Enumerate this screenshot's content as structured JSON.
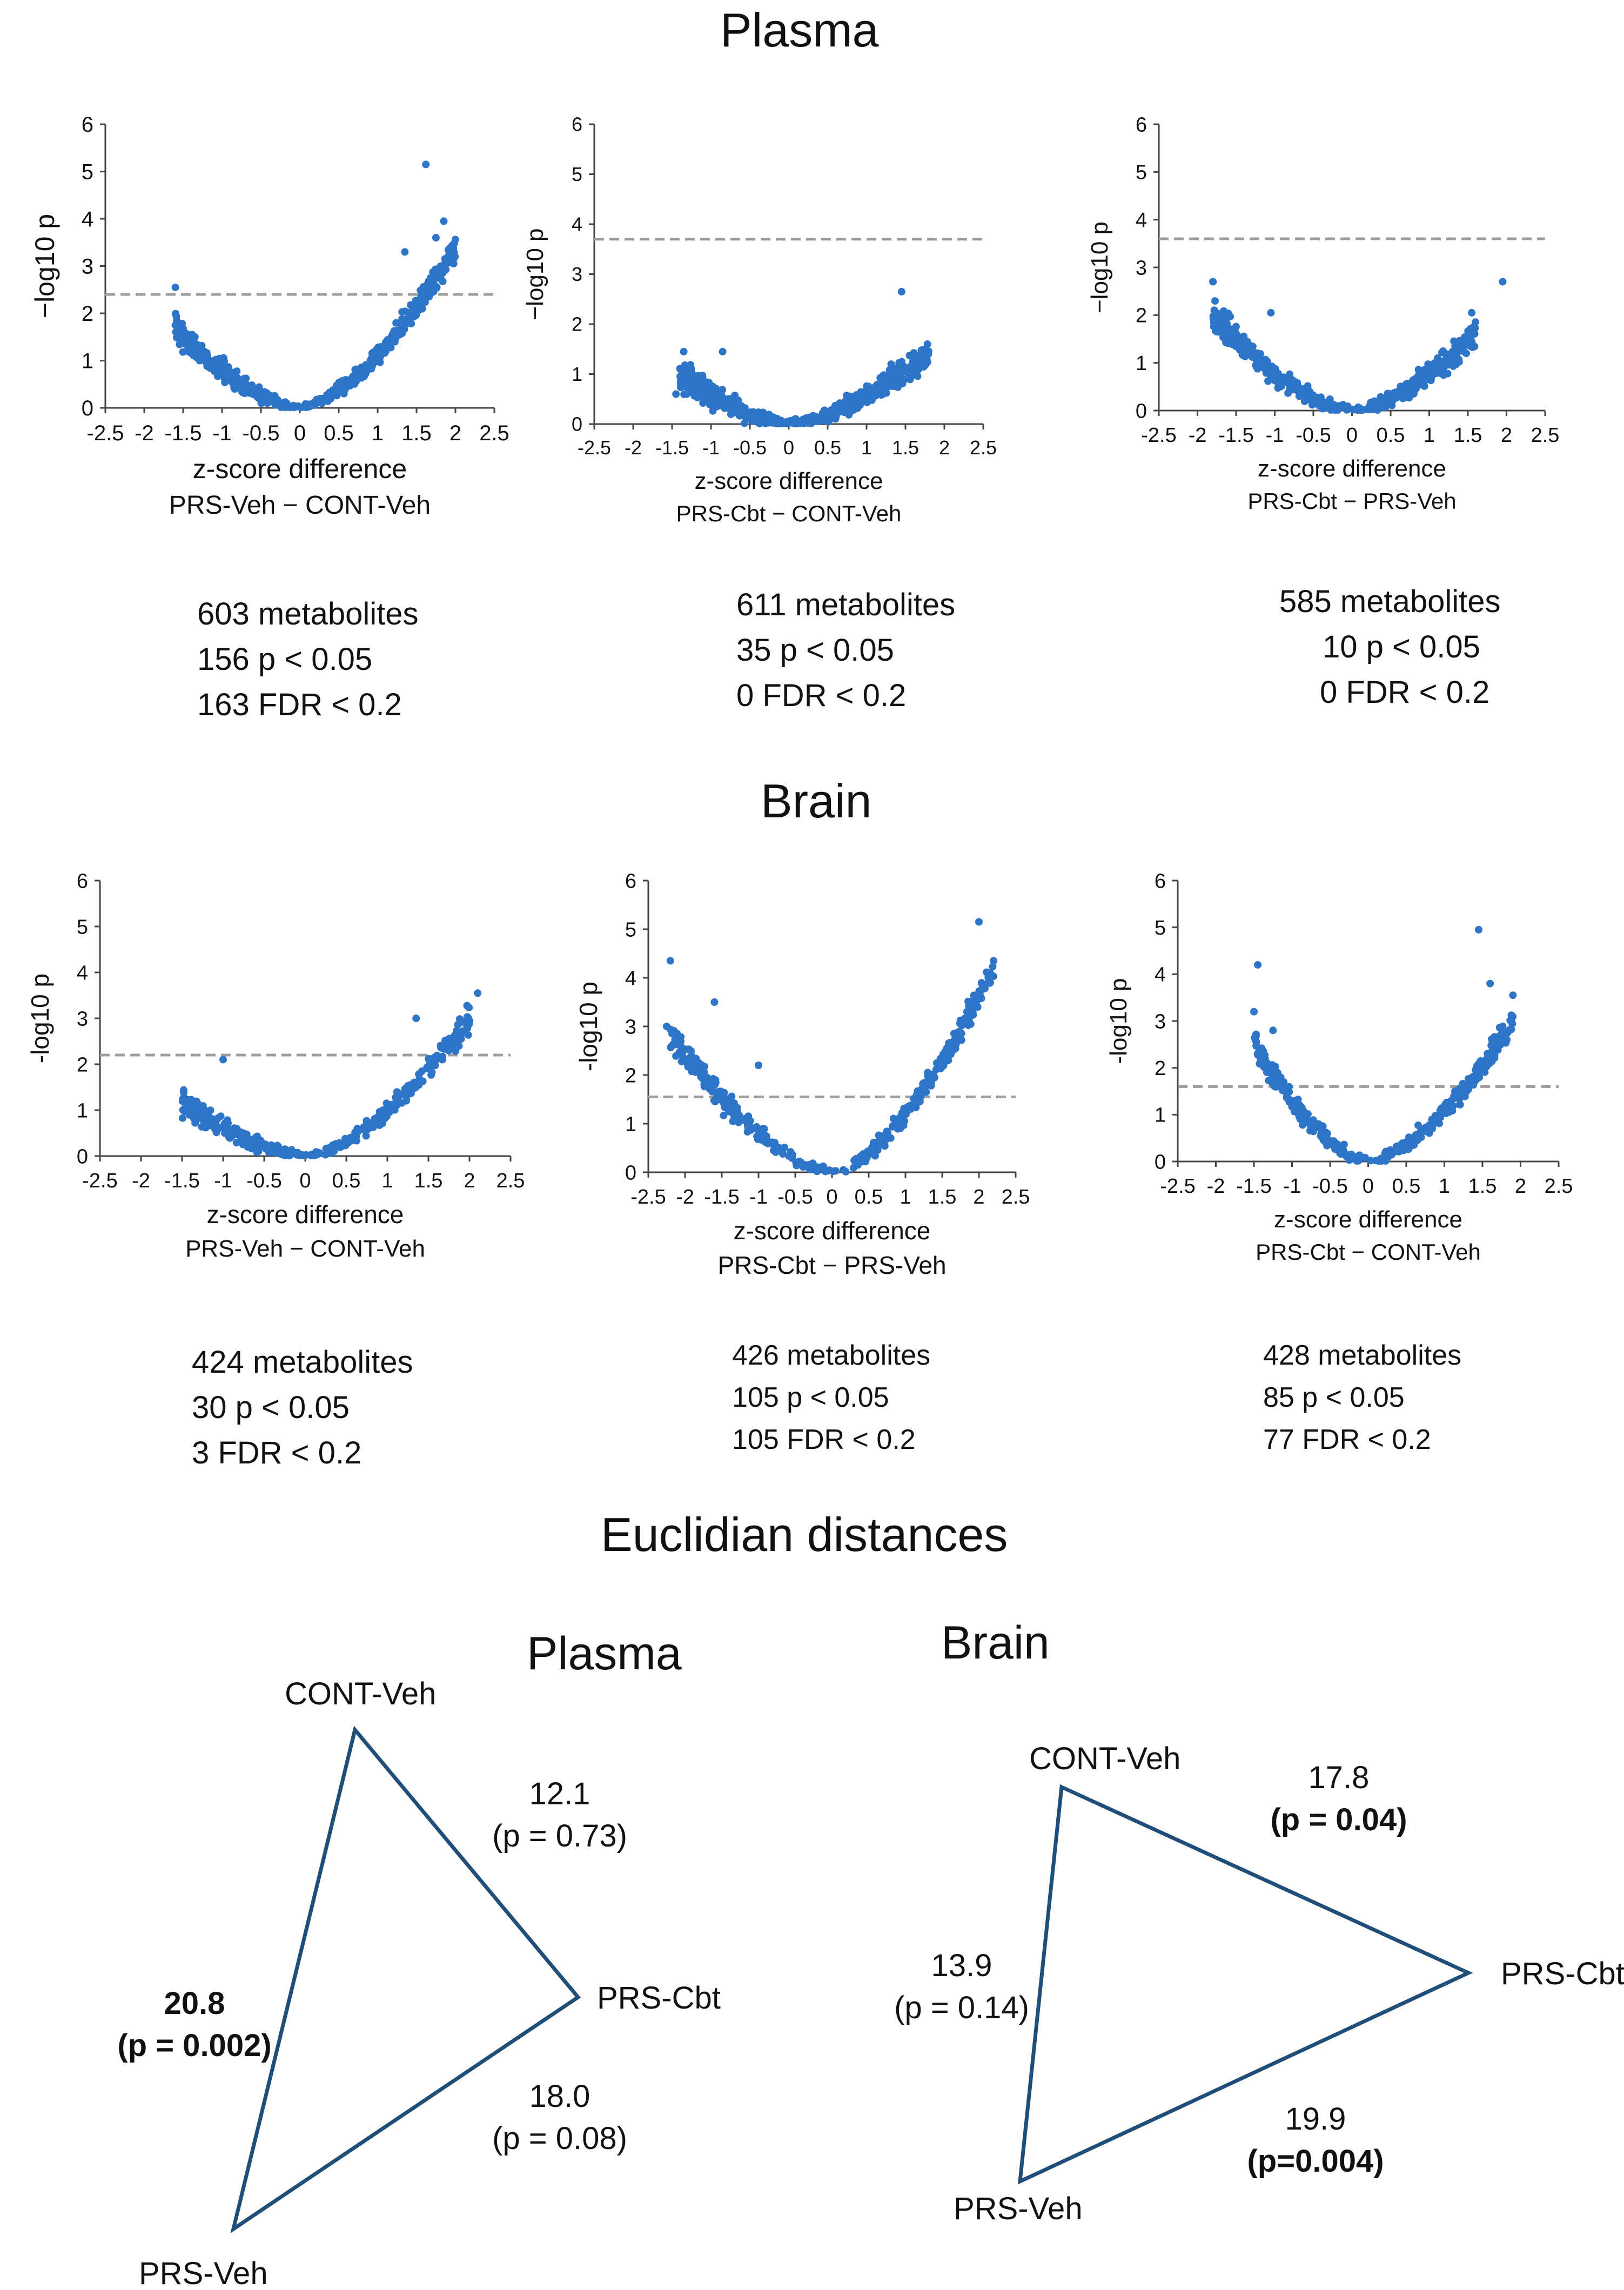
{
  "titles": {
    "plasma": "Plasma",
    "brain": "Brain",
    "euclid": "Euclidian distances",
    "tri_plasma": "Plasma",
    "tri_brain": "Brain"
  },
  "stats": {
    "p1": [
      "603 metabolites",
      "156 p < 0.05",
      "163 FDR < 0.2"
    ],
    "p2": [
      "611 metabolites",
      "35 p < 0.05",
      "0 FDR < 0.2"
    ],
    "p3": [
      "585 metabolites",
      "10 p < 0.05",
      "0 FDR < 0.2"
    ],
    "b1": [
      "424 metabolites",
      "30 p < 0.05",
      "3 FDR < 0.2"
    ],
    "b2": [
      "426 metabolites",
      "105 p < 0.05",
      "105 FDR < 0.2"
    ],
    "b3": [
      "428 metabolites",
      "85 p < 0.05",
      "77 FDR < 0.2"
    ]
  },
  "colors": {
    "points": "#2E75C8",
    "threshold": "#9E9E9E",
    "axis": "#444444",
    "triangle": "#1F4E79"
  },
  "chart_data": [
    {
      "id": "p1",
      "type": "scatter",
      "title": "",
      "xlabel": "z-score difference",
      "comparison": "PRS-Veh − CONT-Veh",
      "ylabel": "−log10 p",
      "xlim": [
        -2.5,
        2.5
      ],
      "ylim": [
        0,
        6
      ],
      "xticks": [
        "-2.5",
        "-2",
        "-1.5",
        "-1",
        "-0.5",
        "0",
        "0.5",
        "1",
        "1.5",
        "2",
        "2.5"
      ],
      "yticks": [
        "0",
        "1",
        "2",
        "3",
        "4",
        "5",
        "6"
      ],
      "threshold": 2.4,
      "n_points": 603,
      "highlights": [
        [
          1.62,
          5.15
        ],
        [
          1.85,
          3.95
        ],
        [
          -1.6,
          2.55
        ],
        [
          -1.6,
          1.75
        ],
        [
          1.75,
          3.6
        ],
        [
          1.35,
          3.3
        ]
      ],
      "trend": {
        "left": [
          -1.6,
          1.7
        ],
        "right": [
          2.0,
          3.4
        ]
      }
    },
    {
      "id": "p2",
      "type": "scatter",
      "title": "",
      "xlabel": "z-score difference",
      "comparison": "PRS-Cbt − CONT-Veh",
      "ylabel": "−log10 p",
      "xlim": [
        -2.5,
        2.5
      ],
      "ylim": [
        0,
        6
      ],
      "xticks": [
        "-2.5",
        "-2",
        "-1.5",
        "-1",
        "-0.5",
        "0",
        "0.5",
        "1",
        "1.5",
        "2",
        "2.5"
      ],
      "yticks": [
        "0",
        "1",
        "2",
        "3",
        "4",
        "5",
        "6"
      ],
      "threshold": 3.7,
      "n_points": 611,
      "highlights": [
        [
          1.45,
          2.65
        ],
        [
          -1.35,
          1.45
        ],
        [
          -0.85,
          1.45
        ],
        [
          -1.45,
          0.6
        ]
      ],
      "trend": {
        "left": [
          -1.4,
          1.0
        ],
        "right": [
          1.8,
          1.4
        ]
      }
    },
    {
      "id": "p3",
      "type": "scatter",
      "title": "",
      "xlabel": "z-score difference",
      "comparison": "PRS-Cbt − PRS-Veh",
      "ylabel": "−log10 p",
      "xlim": [
        -2.5,
        2.5
      ],
      "ylim": [
        0,
        6
      ],
      "xticks": [
        "-2.5",
        "-2",
        "-1.5",
        "-1",
        "-0.5",
        "0",
        "0.5",
        "1",
        "1.5",
        "2",
        "2.5"
      ],
      "yticks": [
        "0",
        "1",
        "2",
        "3",
        "4",
        "5",
        "6"
      ],
      "threshold": 3.6,
      "n_points": 585,
      "highlights": [
        [
          -1.8,
          2.7
        ],
        [
          1.95,
          2.7
        ],
        [
          1.55,
          2.05
        ],
        [
          -1.05,
          2.05
        ]
      ],
      "trend": {
        "left": [
          -1.8,
          2.0
        ],
        "right": [
          1.6,
          1.6
        ]
      }
    },
    {
      "id": "b1",
      "type": "scatter",
      "title": "",
      "xlabel": "z-score difference",
      "comparison": "PRS-Veh − CONT-Veh",
      "ylabel": "-log10 p",
      "xlim": [
        -2.5,
        2.5
      ],
      "ylim": [
        0,
        6
      ],
      "xticks": [
        "-2.5",
        "-2",
        "-1.5",
        "-1",
        "-0.5",
        "0",
        "0.5",
        "1",
        "1.5",
        "2",
        "2.5"
      ],
      "yticks": [
        "0",
        "1",
        "2",
        "3",
        "4",
        "5",
        "6"
      ],
      "threshold": 2.2,
      "n_points": 424,
      "highlights": [
        [
          2.1,
          3.55
        ],
        [
          1.35,
          3.0
        ],
        [
          2.0,
          2.95
        ],
        [
          -1.0,
          2.1
        ]
      ],
      "trend": {
        "left": [
          -1.5,
          1.2
        ],
        "right": [
          2.0,
          3.0
        ]
      }
    },
    {
      "id": "b2",
      "type": "scatter",
      "title": "",
      "xlabel": "z-score difference",
      "comparison": "PRS-Cbt − PRS-Veh",
      "ylabel": "-log10 p",
      "xlim": [
        -2.5,
        2.5
      ],
      "ylim": [
        0,
        6
      ],
      "xticks": [
        "-2.5",
        "-2",
        "-1.5",
        "-1",
        "-0.5",
        "0",
        "0.5",
        "1",
        "1.5",
        "2",
        "2.5"
      ],
      "yticks": [
        "0",
        "1",
        "2",
        "3",
        "4",
        "5",
        "6"
      ],
      "threshold": 1.55,
      "n_points": 426,
      "highlights": [
        [
          2.0,
          5.15
        ],
        [
          2.2,
          4.35
        ],
        [
          -2.2,
          4.35
        ],
        [
          -1.6,
          3.5
        ],
        [
          -2.25,
          3.0
        ],
        [
          -1.0,
          2.2
        ]
      ],
      "trend": {
        "left": [
          -2.2,
          2.8
        ],
        "right": [
          2.2,
          4.2
        ]
      }
    },
    {
      "id": "b3",
      "type": "scatter",
      "title": "",
      "xlabel": "z-score difference",
      "comparison": "PRS-Cbt − CONT-Veh",
      "ylabel": "-log10 p",
      "xlim": [
        -2.5,
        2.5
      ],
      "ylim": [
        0,
        6
      ],
      "xticks": [
        "-2.5",
        "-2",
        "-1.5",
        "-1",
        "-0.5",
        "0",
        "0.5",
        "1",
        "1.5",
        "2",
        "2.5"
      ],
      "yticks": [
        "0",
        "1",
        "2",
        "3",
        "4",
        "5",
        "6"
      ],
      "threshold": 1.6,
      "n_points": 428,
      "highlights": [
        [
          1.45,
          4.95
        ],
        [
          -1.45,
          4.2
        ],
        [
          1.6,
          3.8
        ],
        [
          -1.5,
          3.2
        ],
        [
          -1.25,
          2.8
        ],
        [
          1.9,
          3.55
        ]
      ],
      "trend": {
        "left": [
          -1.5,
          2.5
        ],
        "right": [
          1.9,
          3.0
        ]
      }
    }
  ],
  "triangles": {
    "plasma": {
      "labels": {
        "cont_veh": "CONT-Veh",
        "prs_cbt": "PRS-Cbt",
        "prs_veh": "PRS-Veh"
      },
      "edges": {
        "cont_cbt": {
          "value": "12.1",
          "p": "(p = 0.73)",
          "bold": false
        },
        "cbt_veh": {
          "value": "18.0",
          "p": "(p = 0.08)",
          "bold": false
        },
        "cont_veh": {
          "value": "20.8",
          "p": "(p = 0.002)",
          "bold": true
        }
      }
    },
    "brain": {
      "labels": {
        "cont_veh": "CONT-Veh",
        "prs_cbt": "PRS-Cbt",
        "prs_veh": "PRS-Veh"
      },
      "edges": {
        "cont_cbt": {
          "value": "17.8",
          "p": "(p = 0.04)",
          "bold": true
        },
        "cont_veh": {
          "value": "13.9",
          "p": "(p = 0.14)",
          "bold": false
        },
        "cbt_veh": {
          "value": "19.9",
          "p": "(p=0.004)",
          "bold": true
        }
      }
    }
  }
}
